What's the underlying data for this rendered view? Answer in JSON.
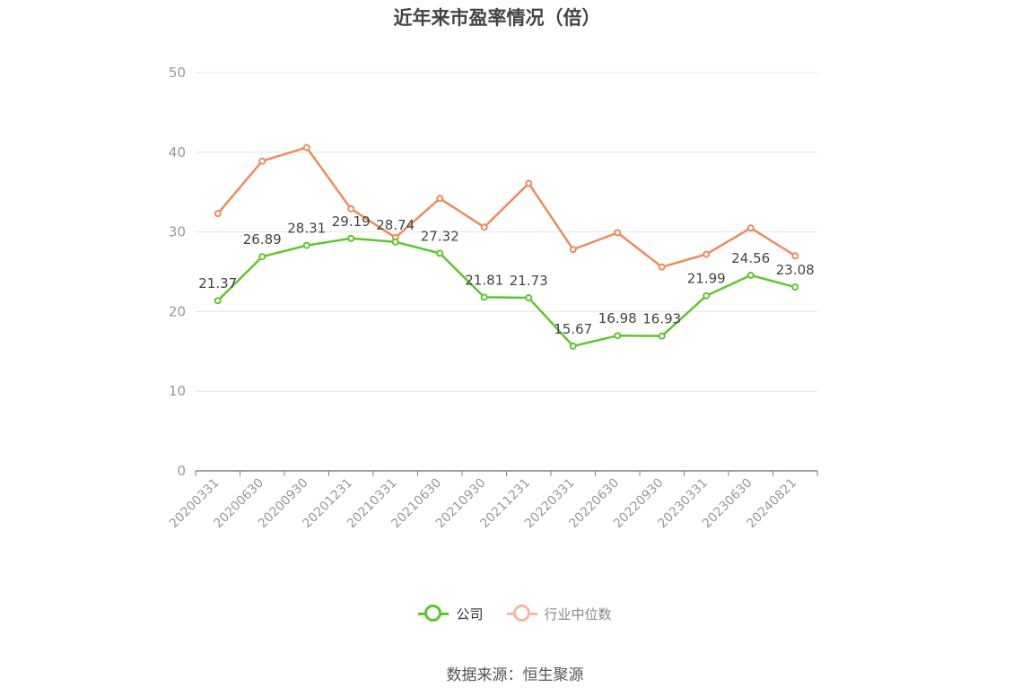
{
  "chart_data": {
    "type": "line",
    "title": "近年来市盈率情况（倍）",
    "categories": [
      "20200331",
      "20200630",
      "20200930",
      "20201231",
      "20210331",
      "20210630",
      "20210930",
      "20211231",
      "20220331",
      "20220630",
      "20220930",
      "20230331",
      "20230630",
      "20240821"
    ],
    "series": [
      {
        "name": "公司",
        "color": "#5cc72e",
        "values": [
          21.37,
          26.89,
          28.31,
          29.19,
          28.74,
          27.32,
          21.81,
          21.73,
          15.67,
          16.98,
          16.93,
          21.99,
          24.56,
          23.08
        ],
        "labels": [
          "21.37",
          "26.89",
          "28.31",
          "29.19",
          "28.74",
          "27.32",
          "21.81",
          "21.73",
          "15.67",
          "16.98",
          "16.93",
          "21.99",
          "24.56",
          "23.08"
        ]
      },
      {
        "name": "行业中位数",
        "color": "#f08a5d",
        "legend_color": "#f5b7a3",
        "values": [
          32.3,
          38.9,
          40.6,
          32.9,
          29.3,
          34.2,
          30.6,
          36.1,
          27.8,
          29.9,
          25.6,
          27.2,
          30.5,
          27.0
        ]
      }
    ],
    "ylim": [
      0,
      50
    ],
    "yticks": [
      "0",
      "10",
      "20",
      "30",
      "40",
      "50"
    ],
    "grid": true,
    "legend_position": "bottom"
  },
  "source": "数据来源：恒生聚源"
}
